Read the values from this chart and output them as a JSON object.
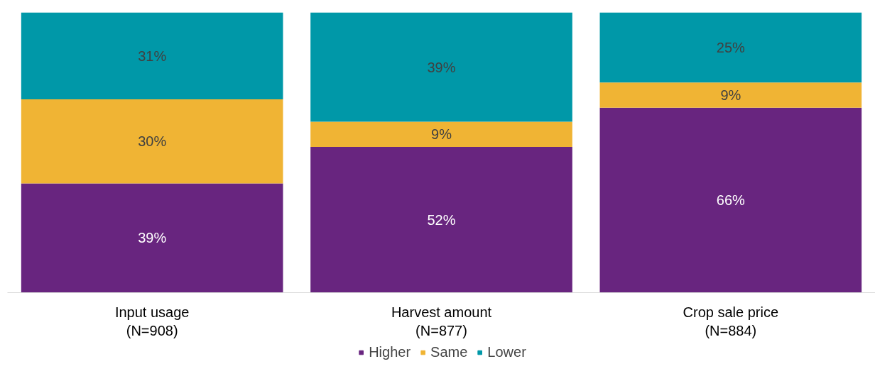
{
  "chart_data": {
    "type": "bar",
    "stacked": true,
    "categories": [
      "Input usage\n(N=908)",
      "Harvest amount\n(N=877)",
      "Crop sale price\n(N=884)"
    ],
    "series": [
      {
        "name": "Higher",
        "color": "#68257f",
        "values": [
          39,
          52,
          66
        ],
        "value_labels": [
          "39%",
          "52%",
          "66%"
        ]
      },
      {
        "name": "Same",
        "color": "#f0b434",
        "values": [
          30,
          9,
          9
        ],
        "value_labels": [
          "30%",
          "9%",
          "9%"
        ]
      },
      {
        "name": "Lower",
        "color": "#0098a8",
        "values": [
          31,
          39,
          25
        ],
        "value_labels": [
          "31%",
          "39%",
          "25%"
        ]
      }
    ],
    "ylim": [
      0,
      100
    ],
    "tick_labels": "x",
    "legend": "bottom"
  }
}
